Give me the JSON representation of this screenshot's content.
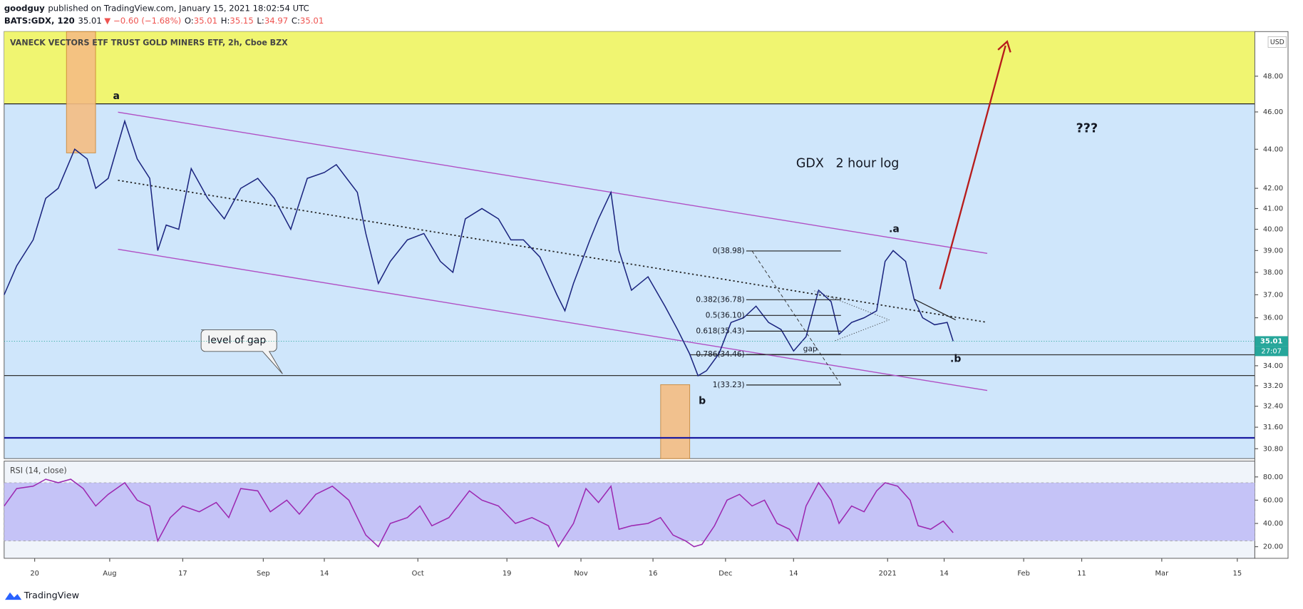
{
  "header": {
    "author": "goodguy",
    "published": "published on TradingView.com, January 15, 2021 18:02:54 UTC",
    "symbol": "BATS:GDX, 120",
    "last": "35.01",
    "change": "▼ −0.60 (−1.68%)",
    "ohlc": [
      {
        "label": "O:",
        "value": "35.01"
      },
      {
        "label": "H:",
        "value": "35.15"
      },
      {
        "label": "L:",
        "value": "34.97"
      },
      {
        "label": "C:",
        "value": "35.01"
      }
    ]
  },
  "chart_data": [
    {
      "type": "line",
      "title": "VANECK VECTORS ETF TRUST GOLD MINERS ETF, 2h, Cboe BZX",
      "currency": "USD",
      "log_scale": true,
      "grid": false,
      "x": [
        0,
        2.5,
        5.8,
        8.3,
        10.8,
        14.1,
        16.6,
        18.3,
        20.8,
        24.1,
        26.6,
        29.1,
        30.7,
        32.4,
        34.9,
        37.4,
        40.7,
        44,
        47.3,
        50.7,
        54,
        57.3,
        60.6,
        64,
        66.4,
        70.6,
        72.3,
        74.8,
        77.2,
        80.6,
        83.9,
        87.2,
        89.7,
        92.2,
        95.5,
        98.8,
        101.3,
        103.8,
        107.1,
        110.5,
        112.1,
        113.8,
        117.1,
        118.8,
        121.3,
        122.9,
        125.4,
        128.7,
        132.1,
        134.6,
        137,
        138.7,
        140.4,
        142.9,
        145.3,
        147.8,
        150.3,
        152.8,
        155.3,
        157.8,
        160.3,
        162.8,
        165.3,
        166.9,
        169.4,
        171.9,
        174.4,
        176.1,
        177.7,
        180.2,
        181.9,
        183.6,
        186,
        188.5,
        189.7
      ],
      "series": [
        {
          "color": "#1a237e",
          "values": [
            37.0,
            38.3,
            39.5,
            41.5,
            42.0,
            44.0,
            43.5,
            42.0,
            42.5,
            45.5,
            43.5,
            42.5,
            39.0,
            40.2,
            40.0,
            43.0,
            41.5,
            40.5,
            42.0,
            42.5,
            41.5,
            40.0,
            42.5,
            42.8,
            43.2,
            41.8,
            39.8,
            37.5,
            38.5,
            39.5,
            39.8,
            38.5,
            38.0,
            40.5,
            41.0,
            40.5,
            39.5,
            39.5,
            38.7,
            37.0,
            36.3,
            37.5,
            39.5,
            40.5,
            41.8,
            39.0,
            37.2,
            37.8,
            36.5,
            35.5,
            34.5,
            33.6,
            33.8,
            34.5,
            35.8,
            36.0,
            36.5,
            35.8,
            35.5,
            34.6,
            35.2,
            37.2,
            36.7,
            35.3,
            35.8,
            36.0,
            36.3,
            38.5,
            39.0,
            38.5,
            36.8,
            36.0,
            35.7,
            35.8,
            35.01
          ]
        }
      ],
      "xlim": [
        0,
        250
      ],
      "xticks": [
        {
          "value": 6.1,
          "label": "20"
        },
        {
          "value": 21.1,
          "label": "Aug"
        },
        {
          "value": 35.7,
          "label": "17"
        },
        {
          "value": 51.8,
          "label": "Sep"
        },
        {
          "value": 64,
          "label": "14"
        },
        {
          "value": 82.7,
          "label": "Oct"
        },
        {
          "value": 100.5,
          "label": "19"
        },
        {
          "value": 115.3,
          "label": "Nov"
        },
        {
          "value": 129.7,
          "label": "16"
        },
        {
          "value": 144.2,
          "label": "Dec"
        },
        {
          "value": 157.8,
          "label": "14"
        },
        {
          "value": 176.6,
          "label": "2021"
        },
        {
          "value": 187.9,
          "label": "14"
        },
        {
          "value": 203.8,
          "label": "Feb"
        },
        {
          "value": 215.4,
          "label": "11"
        },
        {
          "value": 231.4,
          "label": "Mar"
        },
        {
          "value": 246.5,
          "label": "15"
        }
      ],
      "ylim": [
        30.44,
        50.62
      ],
      "yticks": [
        {
          "value": 30.8,
          "label": "30.80"
        },
        {
          "value": 31.6,
          "label": "31.60"
        },
        {
          "value": 32.4,
          "label": "32.40"
        },
        {
          "value": 33.2,
          "label": "33.20"
        },
        {
          "value": 34,
          "label": "34.00"
        },
        {
          "value": 36,
          "label": "36.00"
        },
        {
          "value": 37,
          "label": "37.00"
        },
        {
          "value": 38,
          "label": "38.00"
        },
        {
          "value": 39,
          "label": "39.00"
        },
        {
          "value": 40,
          "label": "40.00"
        },
        {
          "value": 41,
          "label": "41.00"
        },
        {
          "value": 42,
          "label": "42.00"
        },
        {
          "value": 44,
          "label": "44.00"
        },
        {
          "value": 46,
          "label": "46.00"
        },
        {
          "value": 48,
          "label": "48.00"
        }
      ],
      "last_price": 35.01,
      "last_price_color": "#26a69a",
      "countdown": "27:07",
      "fib_levels": [
        {
          "value": 38.98,
          "label": "0(38.98)"
        },
        {
          "value": 36.78,
          "label": "0.382(36.78)"
        },
        {
          "value": 36.1,
          "label": "0.5(36.10)"
        },
        {
          "value": 35.43,
          "label": "0.618(35.43)"
        },
        {
          "value": 34.46,
          "label": "0.786(34.46)"
        },
        {
          "value": 33.23,
          "label": "1(33.23)"
        }
      ],
      "annotations": [
        "a",
        "b",
        ".a",
        ".b",
        "???",
        "GDX   2 hour log",
        "level of gap",
        "gap"
      ]
    },
    {
      "type": "line",
      "title": "RSI (14, close)",
      "band": [
        25,
        75
      ],
      "x": [
        0,
        2.5,
        5.8,
        8.3,
        10.8,
        13.3,
        15.8,
        18.3,
        20.8,
        24.1,
        26.6,
        29.1,
        30.7,
        33.2,
        35.7,
        39,
        42.4,
        44.9,
        47.3,
        50.7,
        53.2,
        56.5,
        59,
        62.3,
        65.6,
        68.9,
        72.3,
        74.8,
        77.2,
        80.6,
        83.1,
        85.5,
        88.9,
        93,
        95.5,
        98.8,
        102.2,
        105.5,
        108.8,
        110.8,
        113.8,
        116.3,
        118.8,
        121.3,
        122.9,
        125.4,
        128.7,
        131.2,
        133.7,
        136.2,
        137.9,
        139.5,
        142,
        144.5,
        147,
        149.5,
        152,
        154.5,
        157,
        158.6,
        160.3,
        162.8,
        165.3,
        166.9,
        169.4,
        171.9,
        174.4,
        176.1,
        178.6,
        181.1,
        182.7,
        185.2,
        187.7,
        189.7
      ],
      "series": [
        {
          "color": "#9c27b0",
          "values": [
            55,
            70,
            72,
            78,
            75,
            78,
            70,
            55,
            65,
            75,
            60,
            55,
            25,
            45,
            55,
            50,
            58,
            45,
            70,
            68,
            50,
            60,
            48,
            65,
            72,
            60,
            30,
            20,
            40,
            45,
            55,
            38,
            45,
            68,
            60,
            55,
            40,
            45,
            38,
            20,
            40,
            70,
            58,
            72,
            35,
            38,
            40,
            45,
            30,
            25,
            20,
            22,
            38,
            60,
            65,
            55,
            60,
            40,
            35,
            25,
            55,
            75,
            60,
            40,
            55,
            50,
            68,
            75,
            72,
            60,
            38,
            35,
            42,
            32
          ]
        }
      ],
      "ylim": [
        10,
        93.6
      ],
      "yticks": [
        {
          "value": 20,
          "label": "20.00"
        },
        {
          "value": 40,
          "label": "40.00"
        },
        {
          "value": 60,
          "label": "60.00"
        },
        {
          "value": 80,
          "label": "80.00"
        }
      ]
    }
  ],
  "footer": {
    "brand": "TradingView"
  }
}
